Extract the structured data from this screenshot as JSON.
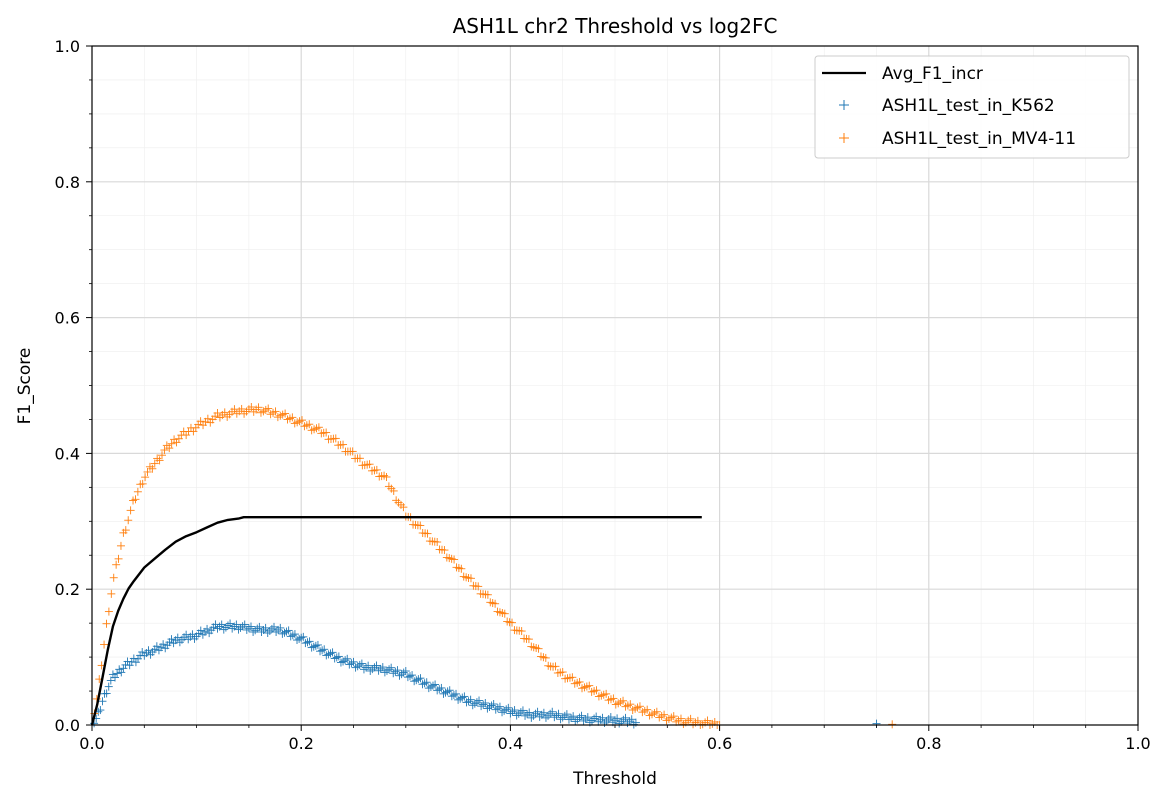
{
  "chart_data": {
    "type": "scatter",
    "title": "ASH1L chr2 Threshold vs log2FC",
    "xlabel": "Threshold",
    "ylabel": "F1_Score",
    "xlim": [
      0.0,
      1.0
    ],
    "ylim": [
      0.0,
      1.0
    ],
    "xticks": [
      "0.0",
      "0.2",
      "0.4",
      "0.6",
      "0.8",
      "1.0"
    ],
    "yticks": [
      "0.0",
      "0.2",
      "0.4",
      "0.6",
      "0.8",
      "1.0"
    ],
    "grid": true,
    "minor_grid": true,
    "legend_position": "top-right",
    "series": [
      {
        "name": "Avg_F1_incr",
        "kind": "line",
        "color": "#000000",
        "points": [
          [
            0.0,
            0.0
          ],
          [
            0.005,
            0.03
          ],
          [
            0.01,
            0.07
          ],
          [
            0.015,
            0.11
          ],
          [
            0.02,
            0.145
          ],
          [
            0.025,
            0.168
          ],
          [
            0.03,
            0.186
          ],
          [
            0.035,
            0.201
          ],
          [
            0.04,
            0.212
          ],
          [
            0.05,
            0.232
          ],
          [
            0.06,
            0.245
          ],
          [
            0.07,
            0.258
          ],
          [
            0.08,
            0.27
          ],
          [
            0.09,
            0.278
          ],
          [
            0.1,
            0.284
          ],
          [
            0.11,
            0.291
          ],
          [
            0.12,
            0.298
          ],
          [
            0.13,
            0.302
          ],
          [
            0.14,
            0.304
          ],
          [
            0.145,
            0.306
          ],
          [
            0.2,
            0.306
          ],
          [
            0.3,
            0.306
          ],
          [
            0.4,
            0.306
          ],
          [
            0.5,
            0.306
          ],
          [
            0.583,
            0.306
          ]
        ]
      },
      {
        "name": "ASH1L_test_in_K562",
        "kind": "plus",
        "color": "#1f77b4",
        "points": [
          [
            0.0,
            0.0
          ],
          [
            0.005,
            0.01
          ],
          [
            0.01,
            0.035
          ],
          [
            0.015,
            0.055
          ],
          [
            0.02,
            0.07
          ],
          [
            0.03,
            0.085
          ],
          [
            0.04,
            0.095
          ],
          [
            0.05,
            0.105
          ],
          [
            0.06,
            0.11
          ],
          [
            0.08,
            0.125
          ],
          [
            0.1,
            0.132
          ],
          [
            0.12,
            0.145
          ],
          [
            0.14,
            0.145
          ],
          [
            0.16,
            0.14
          ],
          [
            0.18,
            0.14
          ],
          [
            0.2,
            0.127
          ],
          [
            0.22,
            0.11
          ],
          [
            0.24,
            0.095
          ],
          [
            0.26,
            0.085
          ],
          [
            0.28,
            0.082
          ],
          [
            0.3,
            0.075
          ],
          [
            0.32,
            0.06
          ],
          [
            0.34,
            0.048
          ],
          [
            0.36,
            0.035
          ],
          [
            0.38,
            0.028
          ],
          [
            0.4,
            0.02
          ],
          [
            0.42,
            0.015
          ],
          [
            0.44,
            0.015
          ],
          [
            0.46,
            0.01
          ],
          [
            0.48,
            0.008
          ],
          [
            0.5,
            0.007
          ],
          [
            0.52,
            0.005
          ],
          [
            0.75,
            0.002
          ]
        ]
      },
      {
        "name": "ASH1L_test_in_MV4-11",
        "kind": "plus",
        "color": "#ff7f0e",
        "points": [
          [
            0.0,
            0.0
          ],
          [
            0.005,
            0.04
          ],
          [
            0.01,
            0.1
          ],
          [
            0.015,
            0.16
          ],
          [
            0.02,
            0.21
          ],
          [
            0.03,
            0.28
          ],
          [
            0.04,
            0.33
          ],
          [
            0.05,
            0.365
          ],
          [
            0.06,
            0.385
          ],
          [
            0.07,
            0.405
          ],
          [
            0.08,
            0.42
          ],
          [
            0.1,
            0.44
          ],
          [
            0.12,
            0.455
          ],
          [
            0.14,
            0.462
          ],
          [
            0.16,
            0.465
          ],
          [
            0.18,
            0.457
          ],
          [
            0.2,
            0.445
          ],
          [
            0.22,
            0.432
          ],
          [
            0.24,
            0.41
          ],
          [
            0.26,
            0.385
          ],
          [
            0.28,
            0.365
          ],
          [
            0.3,
            0.31
          ],
          [
            0.32,
            0.28
          ],
          [
            0.34,
            0.25
          ],
          [
            0.36,
            0.215
          ],
          [
            0.38,
            0.185
          ],
          [
            0.4,
            0.15
          ],
          [
            0.42,
            0.12
          ],
          [
            0.44,
            0.085
          ],
          [
            0.46,
            0.065
          ],
          [
            0.48,
            0.05
          ],
          [
            0.5,
            0.035
          ],
          [
            0.52,
            0.025
          ],
          [
            0.54,
            0.015
          ],
          [
            0.56,
            0.007
          ],
          [
            0.58,
            0.003
          ],
          [
            0.6,
            0.001
          ],
          [
            0.765,
            0.001
          ]
        ]
      }
    ]
  }
}
